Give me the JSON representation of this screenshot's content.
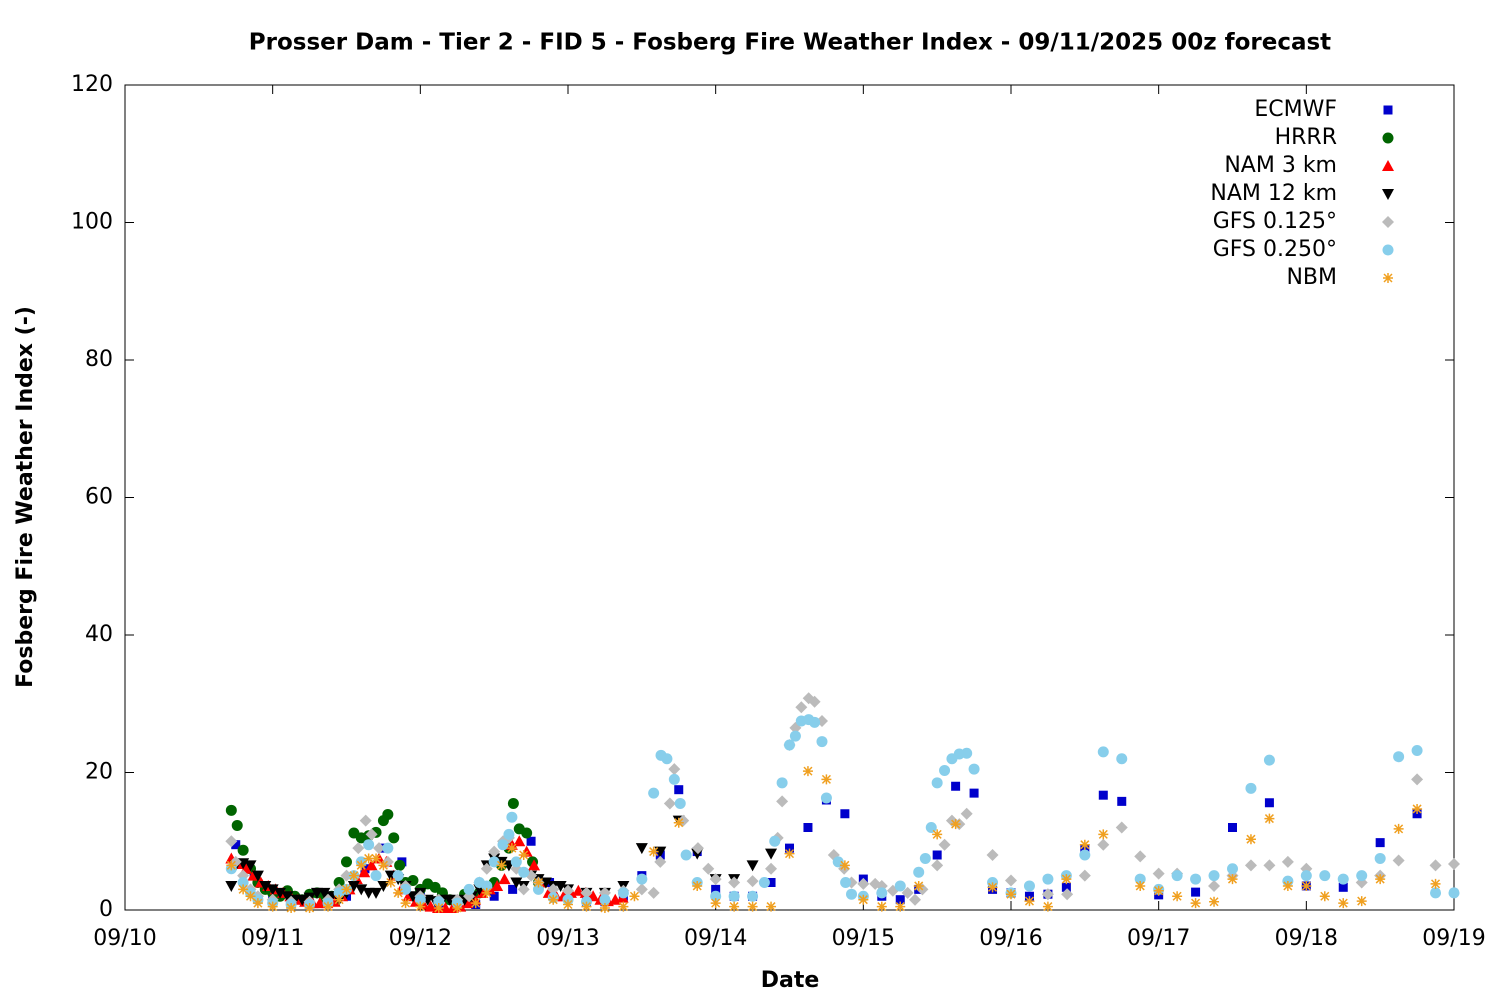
{
  "chart_data": {
    "type": "scatter",
    "title": "Prosser Dam - Tier 2 - FID 5 - Fosberg Fire Weather Index - 09/11/2025 00z forecast",
    "x_label": "Date",
    "y_label": "Fosberg Fire Weather Index (-)",
    "xlim": [
      0,
      9
    ],
    "xticks": [
      {
        "value": 0,
        "label": "09/10"
      },
      {
        "value": 1,
        "label": "09/11"
      },
      {
        "value": 2,
        "label": "09/12"
      },
      {
        "value": 3,
        "label": "09/13"
      },
      {
        "value": 4,
        "label": "09/14"
      },
      {
        "value": 5,
        "label": "09/15"
      },
      {
        "value": 6,
        "label": "09/16"
      },
      {
        "value": 7,
        "label": "09/17"
      },
      {
        "value": 8,
        "label": "09/18"
      },
      {
        "value": 9,
        "label": "09/19"
      }
    ],
    "ylim": [
      0,
      120
    ],
    "yticks": [
      0,
      20,
      40,
      60,
      80,
      100,
      120
    ],
    "legend": "top-right",
    "series": [
      {
        "name": "ECMWF",
        "color": "#0000cc",
        "marker": "square",
        "x": [
          0.75,
          0.875,
          1,
          1.125,
          1.25,
          1.375,
          1.5,
          1.625,
          1.75,
          1.875,
          2,
          2.125,
          2.25,
          2.375,
          2.5,
          2.625,
          2.75,
          2.875,
          3,
          3.125,
          3.25,
          3.375,
          3.5,
          3.625,
          3.75,
          3.875,
          4,
          4.125,
          4.25,
          4.375,
          4.5,
          4.625,
          4.75,
          4.875,
          5,
          5.125,
          5.25,
          5.375,
          5.5,
          5.625,
          5.75,
          5.875,
          6,
          6.125,
          6.25,
          6.375,
          6.5,
          6.625,
          6.75,
          7,
          7.25,
          7.5,
          7.75,
          8,
          8.25,
          8.5,
          8.75
        ],
        "values": [
          9.5,
          5,
          2,
          1.2,
          1,
          1,
          2,
          6,
          9,
          7,
          2,
          1,
          1,
          0.8,
          2,
          3,
          10,
          4,
          2,
          1.2,
          1.2,
          2,
          5,
          8,
          17.5,
          8.5,
          3,
          2,
          2,
          4,
          9,
          12,
          16,
          14,
          4.5,
          2,
          1.5,
          3,
          8,
          18,
          17,
          3,
          2.5,
          2,
          2.3,
          3.3,
          8.8,
          16.7,
          15.8,
          2.2,
          2.6,
          12,
          15.6,
          3.5,
          3.3,
          9.8,
          14
        ]
      },
      {
        "name": "HRRR",
        "color": "#006400",
        "marker": "circle",
        "x": [
          0.72,
          0.76,
          0.8,
          0.85,
          0.9,
          0.95,
          1,
          1.05,
          1.1,
          1.15,
          1.2,
          1.25,
          1.3,
          1.35,
          1.4,
          1.45,
          1.5,
          1.55,
          1.6,
          1.65,
          1.7,
          1.75,
          1.78,
          1.82,
          1.86,
          1.9,
          1.95,
          2,
          2.05,
          2.1,
          2.15,
          2.2,
          2.25,
          2.3,
          2.35,
          2.4,
          2.45,
          2.5,
          2.55,
          2.6,
          2.63,
          2.67,
          2.72,
          2.76,
          2.8
        ],
        "values": [
          14.5,
          12.3,
          8.7,
          6,
          4,
          3,
          2.5,
          2,
          2.8,
          2,
          1.5,
          2.3,
          2.5,
          1.5,
          2,
          4,
          7,
          11.2,
          10.5,
          10.8,
          11.3,
          13,
          13.9,
          10.5,
          6.5,
          4,
          4.3,
          3,
          3.8,
          3.3,
          2.5,
          1.5,
          1,
          2.3,
          1.8,
          2.5,
          3,
          4,
          6.5,
          9,
          15.5,
          11.8,
          11.2,
          7,
          4
        ]
      },
      {
        "name": "NAM 3 km",
        "color": "#ff0000",
        "marker": "triangle-up",
        "x": [
          0.72,
          0.77,
          0.82,
          0.87,
          0.92,
          0.97,
          1.02,
          1.07,
          1.12,
          1.17,
          1.22,
          1.27,
          1.32,
          1.37,
          1.42,
          1.47,
          1.52,
          1.57,
          1.62,
          1.67,
          1.72,
          1.77,
          1.82,
          1.87,
          1.92,
          1.97,
          2.02,
          2.07,
          2.12,
          2.17,
          2.22,
          2.27,
          2.32,
          2.37,
          2.42,
          2.47,
          2.52,
          2.57,
          2.62,
          2.67,
          2.72,
          2.77,
          2.82,
          2.87,
          2.92,
          2.97,
          3.02,
          3.07,
          3.12,
          3.17,
          3.22,
          3.27,
          3.32,
          3.37
        ],
        "values": [
          7.5,
          6.7,
          6,
          5,
          4,
          3.5,
          3,
          2.5,
          2,
          1.5,
          1.2,
          1,
          1,
          1,
          1.2,
          2,
          3,
          4.5,
          5.5,
          6.5,
          7.5,
          7,
          5,
          3,
          2,
          1.2,
          0.8,
          0.5,
          0.3,
          0.3,
          0.3,
          0.5,
          1,
          1.5,
          2.5,
          3,
          3.5,
          4.5,
          9.5,
          10,
          8.5,
          6.5,
          4,
          2.5,
          2,
          2,
          2.5,
          2.8,
          2.5,
          2,
          1.5,
          1.3,
          1.5,
          1.8
        ]
      },
      {
        "name": "NAM 12 km",
        "color": "#000000",
        "marker": "triangle-down",
        "x": [
          0.72,
          0.75,
          0.8,
          0.85,
          0.9,
          0.95,
          1,
          1.05,
          1.1,
          1.15,
          1.2,
          1.25,
          1.3,
          1.35,
          1.4,
          1.45,
          1.5,
          1.55,
          1.6,
          1.65,
          1.7,
          1.75,
          1.8,
          1.85,
          1.9,
          1.95,
          2,
          2.05,
          2.1,
          2.15,
          2.2,
          2.25,
          2.3,
          2.35,
          2.4,
          2.45,
          2.5,
          2.55,
          2.6,
          2.65,
          2.7,
          2.75,
          2.8,
          2.85,
          2.9,
          2.95,
          3,
          3.125,
          3.25,
          3.375,
          3.5,
          3.625,
          3.75,
          3.875,
          4,
          4.125,
          4.25,
          4.375
        ],
        "values": [
          3.5,
          6.5,
          6.8,
          6.5,
          5,
          3.5,
          3,
          2.5,
          2,
          1.5,
          1.5,
          1.8,
          2.5,
          2.5,
          2,
          1.5,
          2.5,
          3.5,
          3,
          2.5,
          2.5,
          3.5,
          5,
          4.5,
          3.5,
          2,
          2.5,
          1.5,
          1.3,
          1.5,
          1.5,
          1.3,
          1.5,
          2,
          3,
          6.5,
          7.5,
          7,
          6.5,
          4,
          3.5,
          5,
          4.5,
          4,
          3.5,
          3.5,
          3,
          2.5,
          2.5,
          3.5,
          9,
          8.5,
          13,
          8.2,
          4.5,
          4.5,
          6.5,
          8.2
        ]
      },
      {
        "name": "GFS 0.125°",
        "color": "#bbbbbb",
        "marker": "diamond",
        "x": [
          0.72,
          0.75,
          0.8,
          0.85,
          0.9,
          1,
          1.125,
          1.25,
          1.375,
          1.45,
          1.5,
          1.58,
          1.63,
          1.67,
          1.72,
          1.78,
          1.85,
          1.9,
          2,
          2.125,
          2.25,
          2.33,
          2.4,
          2.45,
          2.5,
          2.56,
          2.6,
          2.65,
          2.7,
          2.75,
          2.8,
          2.9,
          3,
          3.125,
          3.25,
          3.375,
          3.5,
          3.58,
          3.625,
          3.69,
          3.72,
          3.78,
          3.88,
          3.95,
          4,
          4.125,
          4.25,
          4.375,
          4.42,
          4.45,
          4.5,
          4.54,
          4.58,
          4.63,
          4.67,
          4.72,
          4.8,
          4.87,
          4.92,
          5,
          5.08,
          5.125,
          5.2,
          5.3,
          5.35,
          5.4,
          5.5,
          5.55,
          5.6,
          5.65,
          5.7,
          5.875,
          6,
          6.25,
          6.38,
          6.5,
          6.625,
          6.75,
          6.875,
          7,
          7.125,
          7.375,
          7.5,
          7.625,
          7.75,
          7.875,
          8,
          8.375,
          8.5,
          8.625,
          8.75,
          8.875,
          9
        ],
        "values": [
          10,
          7,
          5,
          3,
          2,
          1.5,
          1.2,
          1.2,
          1.5,
          3,
          5,
          9,
          13,
          11,
          9,
          7,
          5,
          3.5,
          2,
          1.5,
          1.5,
          2,
          4,
          6,
          8.5,
          10,
          10.5,
          6,
          3,
          5,
          4,
          3,
          2.8,
          2.5,
          2.5,
          2.8,
          3,
          2.5,
          7,
          15.5,
          20.5,
          13,
          9,
          6,
          4.5,
          4,
          4.2,
          6,
          10.5,
          15.8,
          24,
          26.5,
          29.5,
          30.8,
          30.3,
          27.5,
          8,
          6,
          4,
          3.8,
          3.8,
          3.5,
          2.8,
          2.5,
          1.5,
          3,
          6.5,
          9.5,
          13,
          12.5,
          14,
          8,
          4.3,
          2.3,
          2.3,
          5,
          9.5,
          12,
          7.8,
          5.3,
          5.3,
          3.5,
          5,
          6.5,
          6.5,
          7,
          6,
          4,
          5,
          7.2,
          19,
          6.5,
          6.7
        ]
      },
      {
        "name": "GFS 0.250°",
        "color": "#87ceeb",
        "marker": "circle",
        "x": [
          0.72,
          0.8,
          0.85,
          0.9,
          1,
          1.125,
          1.25,
          1.375,
          1.45,
          1.5,
          1.55,
          1.6,
          1.65,
          1.7,
          1.78,
          1.85,
          1.9,
          2,
          2.125,
          2.25,
          2.33,
          2.4,
          2.45,
          2.5,
          2.56,
          2.6,
          2.62,
          2.65,
          2.7,
          2.8,
          2.9,
          3,
          3.125,
          3.25,
          3.375,
          3.5,
          3.58,
          3.63,
          3.67,
          3.72,
          3.76,
          3.8,
          3.875,
          4,
          4.125,
          4.25,
          4.33,
          4.4,
          4.45,
          4.5,
          4.54,
          4.58,
          4.63,
          4.67,
          4.72,
          4.75,
          4.83,
          4.88,
          4.92,
          5,
          5.125,
          5.25,
          5.375,
          5.42,
          5.46,
          5.5,
          5.55,
          5.6,
          5.65,
          5.7,
          5.75,
          5.875,
          6,
          6.125,
          6.25,
          6.375,
          6.5,
          6.625,
          6.75,
          6.875,
          7,
          7.125,
          7.25,
          7.375,
          7.5,
          7.625,
          7.75,
          7.875,
          8,
          8.125,
          8.25,
          8.375,
          8.5,
          8.625,
          8.75,
          8.875,
          9
        ],
        "values": [
          6,
          4,
          2.5,
          1.5,
          1,
          0.8,
          0.8,
          1,
          2.5,
          3,
          5,
          7,
          9.5,
          5,
          9,
          5,
          3,
          1.5,
          1.2,
          1,
          3,
          4,
          3.5,
          7,
          9.5,
          11,
          13.5,
          7,
          5.5,
          3,
          1.8,
          1.5,
          1.2,
          1.5,
          2.5,
          4.5,
          17,
          22.5,
          22,
          19,
          15.5,
          8,
          4,
          2,
          2,
          2,
          4,
          10,
          18.5,
          24,
          25.3,
          27.5,
          27.7,
          27.3,
          24.5,
          16.3,
          7,
          4,
          2.3,
          2,
          2.5,
          3.5,
          5.5,
          7.5,
          12,
          18.5,
          20.3,
          22,
          22.7,
          22.8,
          20.5,
          4,
          2.5,
          3.5,
          4.5,
          5,
          8,
          23,
          22,
          4.5,
          3,
          5,
          4.5,
          5,
          6,
          17.7,
          21.8,
          4.2,
          5,
          5,
          4.5,
          5,
          7.5,
          22.3,
          23.2,
          2.5,
          2.5
        ]
      },
      {
        "name": "NBM",
        "color": "#f0a020",
        "marker": "asterisk",
        "x": [
          0.72,
          0.8,
          0.85,
          0.9,
          1,
          1.125,
          1.25,
          1.375,
          1.45,
          1.5,
          1.55,
          1.6,
          1.65,
          1.7,
          1.75,
          1.8,
          1.85,
          1.9,
          2,
          2.125,
          2.25,
          2.375,
          2.45,
          2.55,
          2.62,
          2.7,
          2.8,
          2.9,
          3,
          3.125,
          3.25,
          3.375,
          3.45,
          3.58,
          3.75,
          3.875,
          4,
          4.125,
          4.25,
          4.375,
          4.5,
          4.625,
          4.75,
          4.875,
          5,
          5.125,
          5.25,
          5.375,
          5.5,
          5.625,
          5.875,
          6,
          6.125,
          6.25,
          6.375,
          6.5,
          6.625,
          6.875,
          7,
          7.125,
          7.25,
          7.375,
          7.5,
          7.625,
          7.75,
          7.875,
          8,
          8.125,
          8.25,
          8.375,
          8.5,
          8.625,
          8.75,
          8.875
        ],
        "values": [
          6.5,
          3,
          2,
          1,
          0.5,
          0.3,
          0.3,
          0.5,
          1.5,
          3,
          5,
          6.5,
          7.5,
          7.5,
          6.5,
          4,
          2.5,
          1,
          0.5,
          0.3,
          0.3,
          1,
          2.5,
          6.5,
          9,
          8,
          4,
          1.5,
          0.8,
          0.5,
          0.3,
          0.5,
          2,
          8.5,
          12.7,
          3.5,
          1,
          0.5,
          0.5,
          0.5,
          8.2,
          20.2,
          19,
          6.5,
          1.5,
          0.5,
          0.5,
          3.5,
          11,
          12.5,
          3.3,
          2.3,
          1.3,
          0.5,
          4.5,
          9.5,
          11,
          3.5,
          2.8,
          2,
          1,
          1.2,
          4.5,
          10.3,
          13.3,
          3.5,
          3.5,
          2,
          1,
          1.3,
          4.5,
          11.8,
          14.7,
          3.8
        ]
      }
    ]
  }
}
